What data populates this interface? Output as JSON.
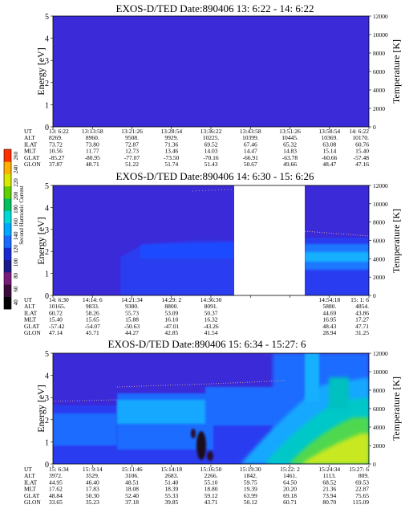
{
  "figure": {
    "colorbar": {
      "label": "Second Harmonic Current",
      "ticks": [
        "40",
        "60",
        "80",
        "100",
        "120",
        "140",
        "160",
        "180",
        "200",
        "220",
        "240",
        "260"
      ],
      "colors": [
        "#000000",
        "#3a0a3a",
        "#7a1a7a",
        "#1a1a8a",
        "#1a2ad0",
        "#1a6aff",
        "#00a8ff",
        "#00d8d8",
        "#00c060",
        "#60d000",
        "#d8e800",
        "#ffb000",
        "#ff3000"
      ]
    }
  },
  "chart_data": [
    {
      "type": "heatmap",
      "title": "EXOS-D/TED   Date:890406  13: 6:22 - 14: 6:22",
      "ylabel": "Energy [eV]",
      "y2label": "Temperature [K]",
      "ylim": [
        0,
        5
      ],
      "y_ticks": [
        "0",
        "1",
        "2",
        "3",
        "4",
        "5"
      ],
      "y2lim": [
        0,
        12000
      ],
      "y2_ticks": [
        "0",
        "2000",
        "4000",
        "6000",
        "8000",
        "10000",
        "12000"
      ],
      "background": "#3a2ad8",
      "data_gap": null,
      "ephemeris_labels": [
        "UT",
        "ALT",
        "ILAT",
        "MLT",
        "GLAT",
        "GLON"
      ],
      "ephemeris": [
        [
          "13: 6:22",
          "13:13:58",
          "13:21:26",
          "13:28:54",
          "13:36:22",
          "13:43:58",
          "13:51:26",
          "13:58:54",
          "14: 6:22"
        ],
        [
          "8269.",
          "8960.",
          "9508.",
          "9929.",
          "10225.",
          "10399.",
          "10445.",
          "10369.",
          "10170."
        ],
        [
          "73.72",
          "73.80",
          "72.87",
          "71.36",
          "69.52",
          "67.46",
          "65.32",
          "63.08",
          "60.76"
        ],
        [
          "10.56",
          "11.77",
          "12.73",
          "13.46",
          "14.03",
          "14.47",
          "14.83",
          "15.14",
          "15.40"
        ],
        [
          "-85.27",
          "-80.95",
          "-77.07",
          "-73.50",
          "-70.16",
          "-66.91",
          "-63.78",
          "-60.66",
          "-57.48"
        ],
        [
          "37.87",
          "48.71",
          "51.22",
          "51.74",
          "51.43",
          "50.67",
          "49.66",
          "48.47",
          "47.16"
        ]
      ]
    },
    {
      "type": "heatmap",
      "title": "EXOS-D/TED   Date:890406  14: 6:30 - 15: 6:26",
      "ylabel": "Energy [eV]",
      "y2label": "Temperature [K]",
      "ylim": [
        0,
        5
      ],
      "y_ticks": [
        "0",
        "1",
        "2",
        "3",
        "4",
        "5"
      ],
      "y2lim": [
        0,
        12000
      ],
      "y2_ticks": [
        "0",
        "2000",
        "4000",
        "6000",
        "8000",
        "10000",
        "12000"
      ],
      "background": "#3a2ad8",
      "data_gap": [
        0.545,
        0.8
      ],
      "ephemeris_labels": [
        "UT",
        "ALT",
        "ILAT",
        "MLT",
        "GLAT",
        "GLON"
      ],
      "ephemeris": [
        [
          "14: 6:30",
          "14:14: 6",
          "14:21:34",
          "14:29: 2",
          "14:36:30",
          "",
          "",
          "14:54:18",
          "15: 1: 6"
        ],
        [
          "10165.",
          "9833.",
          "9380.",
          "8800.",
          "8091.",
          "",
          "",
          "5880.",
          "4854."
        ],
        [
          "60.72",
          "58.26",
          "55.73",
          "53.09",
          "50.37",
          "",
          "",
          "44.69",
          "43.86"
        ],
        [
          "15.40",
          "15.65",
          "15.88",
          "16.10",
          "16.32",
          "",
          "",
          "16.95",
          "17.27"
        ],
        [
          "-57.42",
          "-54.07",
          "-50.63",
          "-47.01",
          "-43.26",
          "",
          "",
          "48.43",
          "47.71"
        ],
        [
          "47.14",
          "45.71",
          "44.27",
          "42.85",
          "41.54",
          "",
          "",
          "28.94",
          "31.25"
        ]
      ]
    },
    {
      "type": "heatmap",
      "title": "EXOS-D/TED   Date:890406  15: 6:34 - 15:27: 6",
      "ylabel": "Energy [eV]",
      "y2label": "Temperature [K]",
      "ylim": [
        0,
        5
      ],
      "y_ticks": [
        "0",
        "1",
        "2",
        "3",
        "4",
        "5"
      ],
      "y2lim": [
        0,
        12000
      ],
      "y2_ticks": [
        "0",
        "2000",
        "4000",
        "6000",
        "8000",
        "10000",
        "12000"
      ],
      "background": "#3a2ad8",
      "data_gap": null,
      "ephemeris_labels": [
        "UT",
        "ALT",
        "ILAT",
        "MLT",
        "GLAT",
        "GLON"
      ],
      "ephemeris": [
        [
          "15: 6:34",
          "15: 9:14",
          "15:11:46",
          "15:14:18",
          "15:16:50",
          "15:19:30",
          "15:22: 2",
          "15:24:34",
          "15:27: 6"
        ],
        [
          "3972.",
          "3529.",
          "3106.",
          "2683.",
          "2266.",
          "1842.",
          "1461.",
          "1113.",
          "809."
        ],
        [
          "44.95",
          "46.40",
          "48.51",
          "51.40",
          "55.10",
          "59.75",
          "64.50",
          "68.52",
          "69.53"
        ],
        [
          "17.62",
          "17.83",
          "18.08",
          "18.39",
          "18.80",
          "19.39",
          "20.20",
          "21.36",
          "22.87"
        ],
        [
          "48.84",
          "50.30",
          "52.40",
          "55.33",
          "59.12",
          "63.99",
          "69.18",
          "73.94",
          "75.65"
        ],
        [
          "33.65",
          "35.23",
          "37.18",
          "39.85",
          "43.71",
          "50.12",
          "60.71",
          "80.70",
          "115.09"
        ]
      ]
    }
  ]
}
